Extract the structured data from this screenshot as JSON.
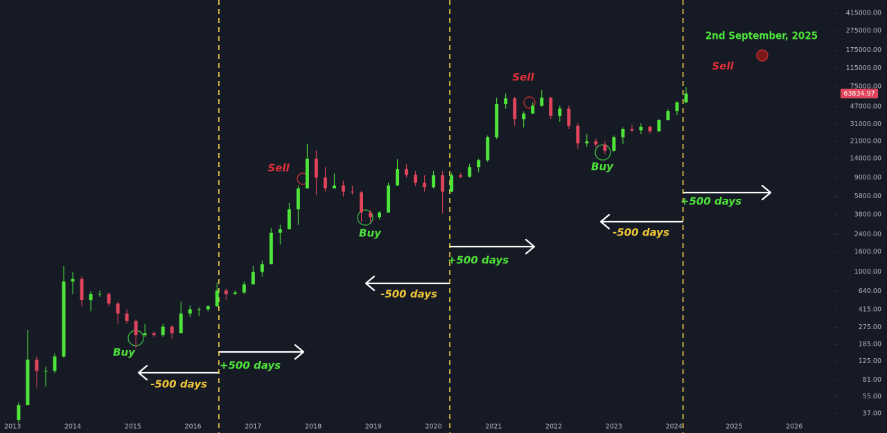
{
  "chart_data": {
    "type": "candlestick",
    "log_scale": true,
    "up_color": "#4ee43a",
    "down_color": "#e0445a",
    "vline_color": "#f5d547",
    "xlim": [
      2012.79,
      2026.62
    ],
    "xticks": [
      2013,
      2014,
      2015,
      2016,
      2017,
      2018,
      2019,
      2020,
      2021,
      2022,
      2023,
      2024,
      2025,
      2026
    ],
    "ylim": [
      30,
      563000
    ],
    "yticks": [
      {
        "value": 415000,
        "label": "415000.00"
      },
      {
        "value": 275000,
        "label": "275000.00"
      },
      {
        "value": 175000,
        "label": "175000.00"
      },
      {
        "value": 115000,
        "label": "115000.00"
      },
      {
        "value": 75000,
        "label": "75000.00"
      },
      {
        "value": 47000,
        "label": "47000.00"
      },
      {
        "value": 31000,
        "label": "31000.00"
      },
      {
        "value": 21000,
        "label": "21000.00"
      },
      {
        "value": 14000,
        "label": "14000.00"
      },
      {
        "value": 9000,
        "label": "9000.00"
      },
      {
        "value": 5800,
        "label": "5800.00"
      },
      {
        "value": 3800,
        "label": "3800.00"
      },
      {
        "value": 2400,
        "label": "2400.00"
      },
      {
        "value": 1600,
        "label": "1600.00"
      },
      {
        "value": 1000,
        "label": "1000.00"
      },
      {
        "value": 640,
        "label": "640.00"
      },
      {
        "value": 415,
        "label": "415.00"
      },
      {
        "value": 275,
        "label": "275.00"
      },
      {
        "value": 185,
        "label": "185.00"
      },
      {
        "value": 125,
        "label": "125.00"
      },
      {
        "value": 81,
        "label": "81.00"
      },
      {
        "value": 55,
        "label": "55.00"
      },
      {
        "value": 37,
        "label": "37.00"
      }
    ],
    "x": [
      2013.1,
      2013.25,
      2013.4,
      2013.55,
      2013.7,
      2013.85,
      2014.0,
      2014.15,
      2014.3,
      2014.45,
      2014.6,
      2014.75,
      2014.9,
      2015.05,
      2015.2,
      2015.35,
      2015.5,
      2015.65,
      2015.8,
      2015.95,
      2016.1,
      2016.25,
      2016.4,
      2016.55,
      2016.7,
      2016.85,
      2017.0,
      2017.15,
      2017.3,
      2017.45,
      2017.6,
      2017.75,
      2017.9,
      2018.05,
      2018.2,
      2018.35,
      2018.5,
      2018.65,
      2018.8,
      2018.95,
      2019.1,
      2019.25,
      2019.4,
      2019.55,
      2019.7,
      2019.85,
      2020.0,
      2020.15,
      2020.3,
      2020.45,
      2020.6,
      2020.75,
      2020.9,
      2021.05,
      2021.2,
      2021.35,
      2021.5,
      2021.65,
      2021.8,
      2021.95,
      2022.1,
      2022.25,
      2022.4,
      2022.55,
      2022.7,
      2022.85,
      2023.0,
      2023.15,
      2023.3,
      2023.45,
      2023.6,
      2023.75,
      2023.9,
      2024.05,
      2024.2
    ],
    "open": [
      32,
      45,
      130,
      100,
      100,
      140,
      800,
      850,
      520,
      600,
      600,
      480,
      380,
      320,
      230,
      240,
      230,
      280,
      240,
      380,
      420,
      420,
      450,
      650,
      600,
      620,
      750,
      1000,
      1200,
      2500,
      2700,
      4300,
      7000,
      14000,
      9000,
      7000,
      7500,
      6500,
      6400,
      4000,
      3600,
      4000,
      7500,
      11000,
      9600,
      8000,
      7200,
      9500,
      6500,
      9500,
      9200,
      11500,
      13500,
      23000,
      50000,
      57000,
      35000,
      40000,
      48000,
      58000,
      38000,
      45000,
      30000,
      20000,
      21000,
      19500,
      16800,
      23000,
      28000,
      27000,
      29500,
      26500,
      34500,
      42500,
      52000
    ],
    "high": [
      48,
      260,
      140,
      110,
      150,
      1150,
      1000,
      900,
      640,
      650,
      620,
      500,
      420,
      330,
      300,
      250,
      300,
      290,
      500,
      460,
      440,
      460,
      780,
      680,
      650,
      800,
      1150,
      1300,
      2800,
      3000,
      5000,
      7500,
      19800,
      17000,
      11500,
      9900,
      8400,
      7400,
      6600,
      4200,
      4100,
      8000,
      13800,
      12300,
      10500,
      9500,
      10500,
      10500,
      10000,
      10000,
      12400,
      14000,
      24000,
      58000,
      64000,
      59000,
      42000,
      52000,
      69000,
      59000,
      48000,
      48000,
      32000,
      25000,
      22500,
      21000,
      24000,
      29000,
      31000,
      31800,
      30000,
      35000,
      44500,
      53000,
      73800
    ],
    "low": [
      30,
      45,
      68,
      70,
      95,
      135,
      600,
      450,
      400,
      560,
      450,
      300,
      300,
      170,
      220,
      220,
      220,
      210,
      240,
      350,
      360,
      400,
      440,
      520,
      590,
      600,
      750,
      900,
      1200,
      1900,
      2700,
      3000,
      7000,
      6000,
      6500,
      7000,
      5800,
      6100,
      3200,
      3200,
      3400,
      4000,
      7500,
      9000,
      7400,
      6500,
      7000,
      3900,
      6400,
      8900,
      9000,
      10200,
      13000,
      22000,
      45000,
      30000,
      29000,
      40000,
      47000,
      35000,
      33000,
      28000,
      17600,
      18500,
      18200,
      15500,
      16500,
      19600,
      26000,
      24800,
      25000,
      26000,
      34000,
      38500,
      51000
    ],
    "close": [
      45,
      130,
      100,
      100,
      140,
      800,
      850,
      520,
      600,
      600,
      480,
      380,
      320,
      230,
      240,
      230,
      280,
      240,
      380,
      420,
      420,
      450,
      650,
      600,
      620,
      750,
      1000,
      1200,
      2500,
      2700,
      4300,
      7000,
      14000,
      9000,
      7000,
      7500,
      6500,
      6400,
      4000,
      3600,
      4000,
      7500,
      11000,
      9600,
      8000,
      7200,
      9500,
      6500,
      9500,
      9200,
      11500,
      13500,
      23000,
      50000,
      57000,
      35000,
      40000,
      48000,
      58000,
      38000,
      45000,
      30000,
      20000,
      21000,
      19500,
      16800,
      23000,
      28000,
      27000,
      29500,
      26500,
      34500,
      42500,
      52000,
      63834.97
    ],
    "vlines": [
      2016.43,
      2020.27,
      2024.15
    ],
    "annotations": [
      {
        "text": "Buy",
        "color": "#4ee43a"
      },
      {
        "text": "Buy",
        "color": "#4ee43a"
      },
      {
        "text": "Buy",
        "color": "#4ee43a"
      },
      {
        "text": "Sell",
        "color": "#e0303a"
      },
      {
        "text": "Sell",
        "color": "#e0303a"
      },
      {
        "text": "Sell",
        "color": "#e0303a"
      },
      {
        "text": "2nd September, 2025",
        "color": "#4ee43a"
      },
      {
        "text": "-500 days",
        "color": "#f0c53a"
      },
      {
        "text": "+500 days",
        "color": "#4ee43a"
      },
      {
        "text": "-500 days",
        "color": "#f0c53a"
      },
      {
        "text": "+500 days",
        "color": "#4ee43a"
      },
      {
        "text": "-500 days",
        "color": "#f0c53a"
      },
      {
        "text": "+500 days",
        "color": "#4ee43a"
      }
    ]
  }
}
